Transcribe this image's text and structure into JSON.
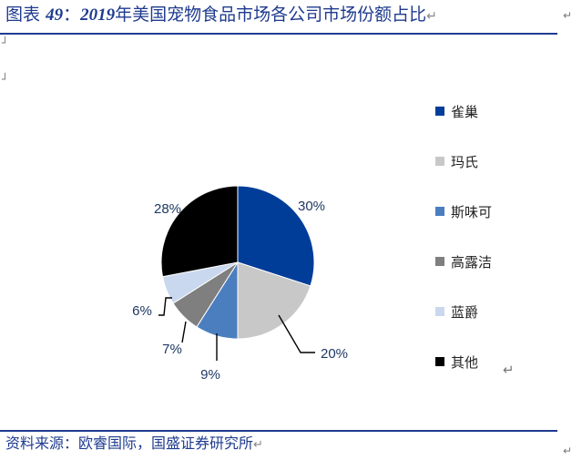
{
  "header": {
    "title_prefix": "图表",
    "title_number": "49",
    "title_colon": "：",
    "title_year": "2019",
    "title_text": "年美国宠物食品市场各公司市场份额占比"
  },
  "footer": {
    "source": "资料来源：欧睿国际，国盛证券研究所"
  },
  "colors": {
    "雀巢": "#003d99",
    "玛氏": "#c8c8c8",
    "斯味可": "#4a7ebf",
    "高露洁": "#7f7f7f",
    "蓝爵": "#c9d8ee",
    "其他": "#000000"
  },
  "chart_data": {
    "type": "pie",
    "title": "",
    "categories": [
      "雀巢",
      "玛氏",
      "斯味可",
      "高露洁",
      "蓝爵",
      "其他"
    ],
    "values": [
      30,
      20,
      9,
      7,
      6,
      28
    ],
    "value_labels": [
      "30%",
      "20%",
      "9%",
      "7%",
      "6%",
      "28%"
    ],
    "legend_position": "right"
  }
}
